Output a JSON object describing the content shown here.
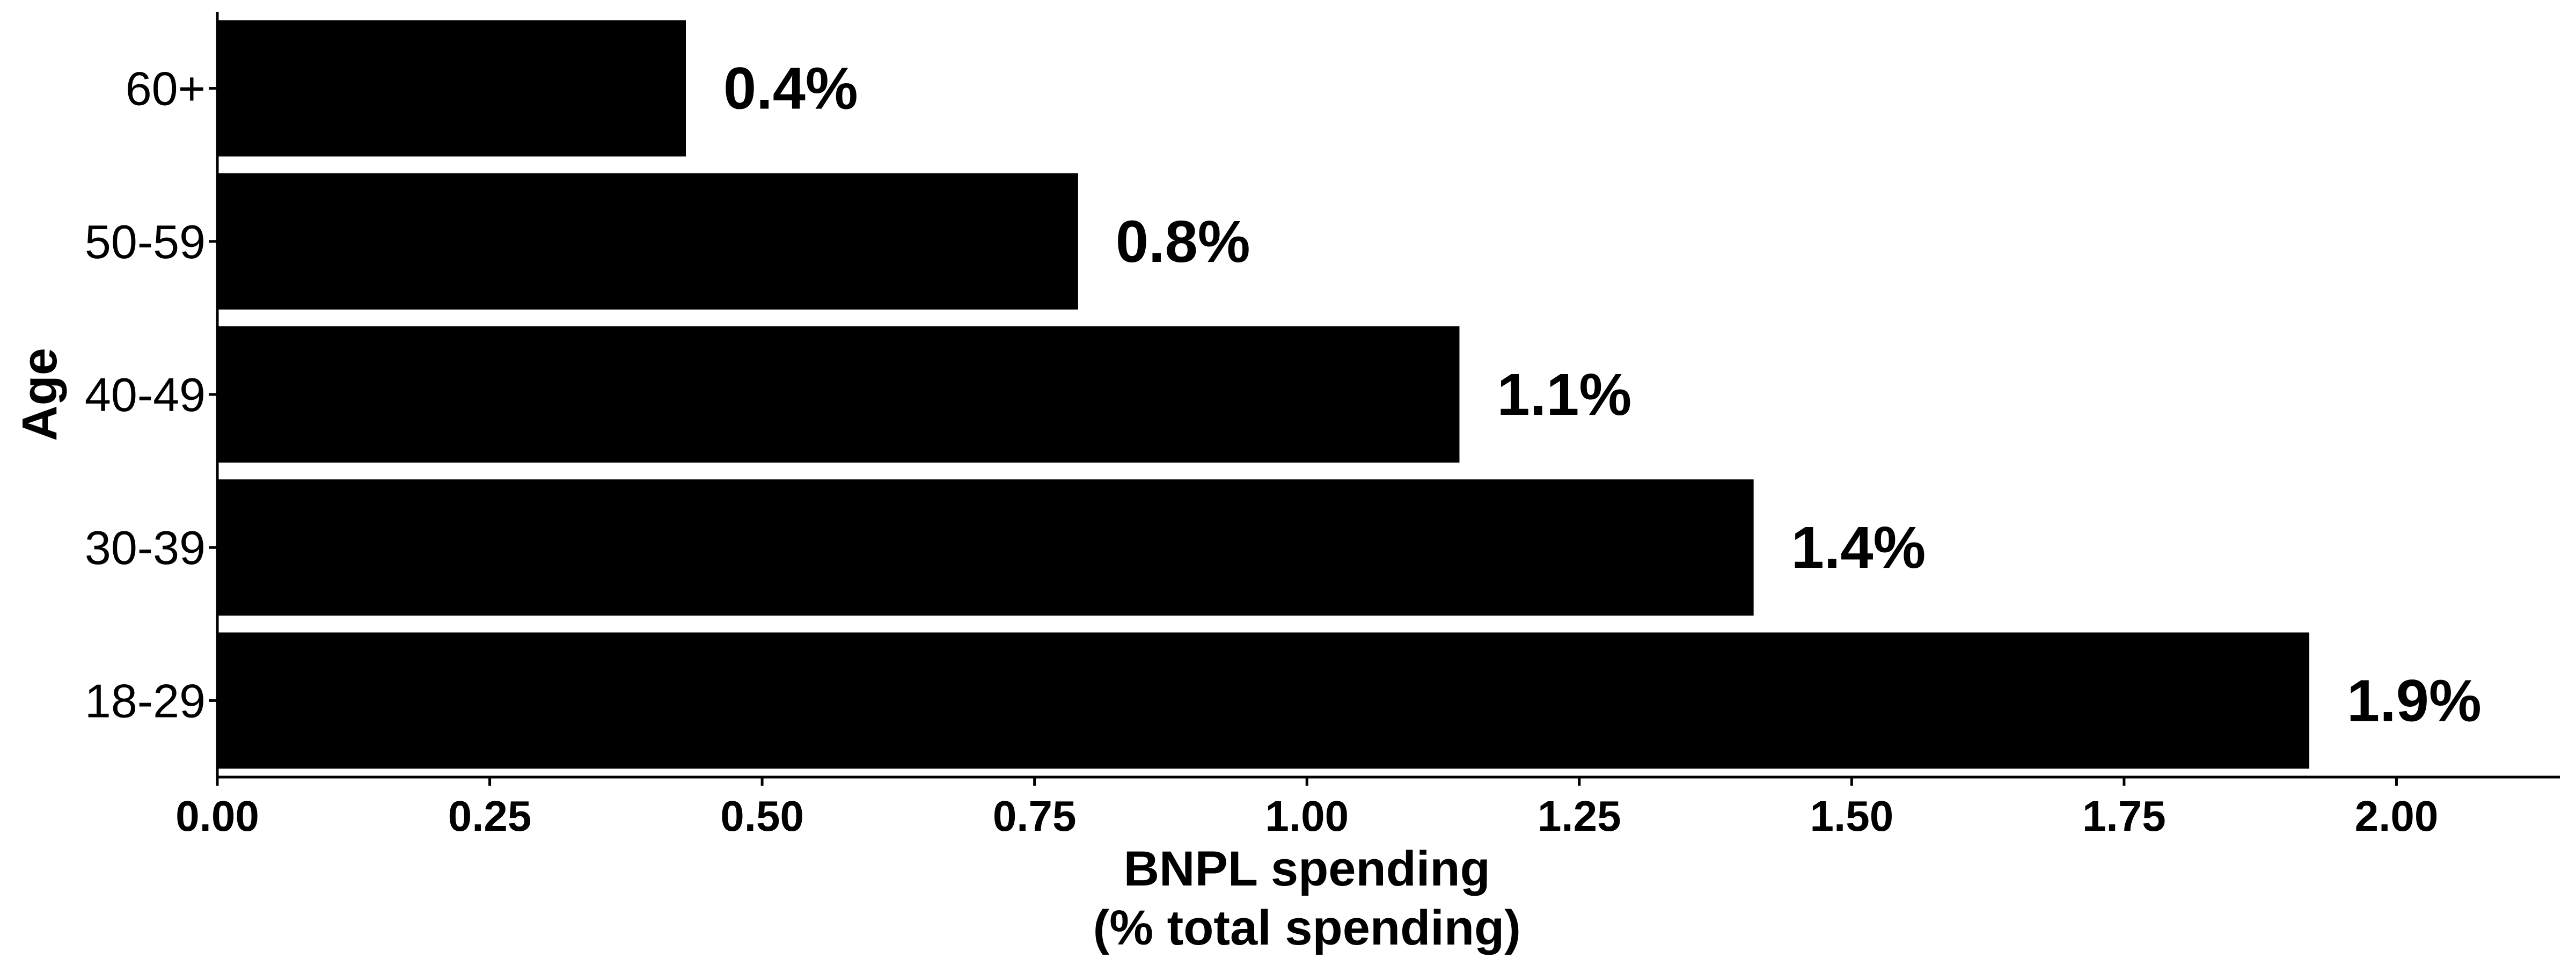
{
  "chart_data": {
    "type": "bar",
    "orientation": "horizontal",
    "categories": [
      "18-29",
      "30-39",
      "40-49",
      "50-59",
      "60+"
    ],
    "values": [
      1.92,
      1.41,
      1.14,
      0.79,
      0.43
    ],
    "data_labels": [
      "1.9%",
      "1.4%",
      "1.1%",
      "0.8%",
      "0.4%"
    ],
    "title": "",
    "xlabel_lines": [
      "BNPL spending",
      "(% total spending)"
    ],
    "ylabel": "Age",
    "xlim": [
      0,
      2.15
    ],
    "x_ticks": [
      0,
      0.25,
      0.5,
      0.75,
      1.0,
      1.25,
      1.5,
      1.75,
      2.0
    ],
    "x_tick_labels": [
      "0.00",
      "0.25",
      "0.50",
      "0.75",
      "1.00",
      "1.25",
      "1.50",
      "1.75",
      "2.00"
    ],
    "grid": false,
    "legend": "none",
    "bar_color": "#000000"
  }
}
